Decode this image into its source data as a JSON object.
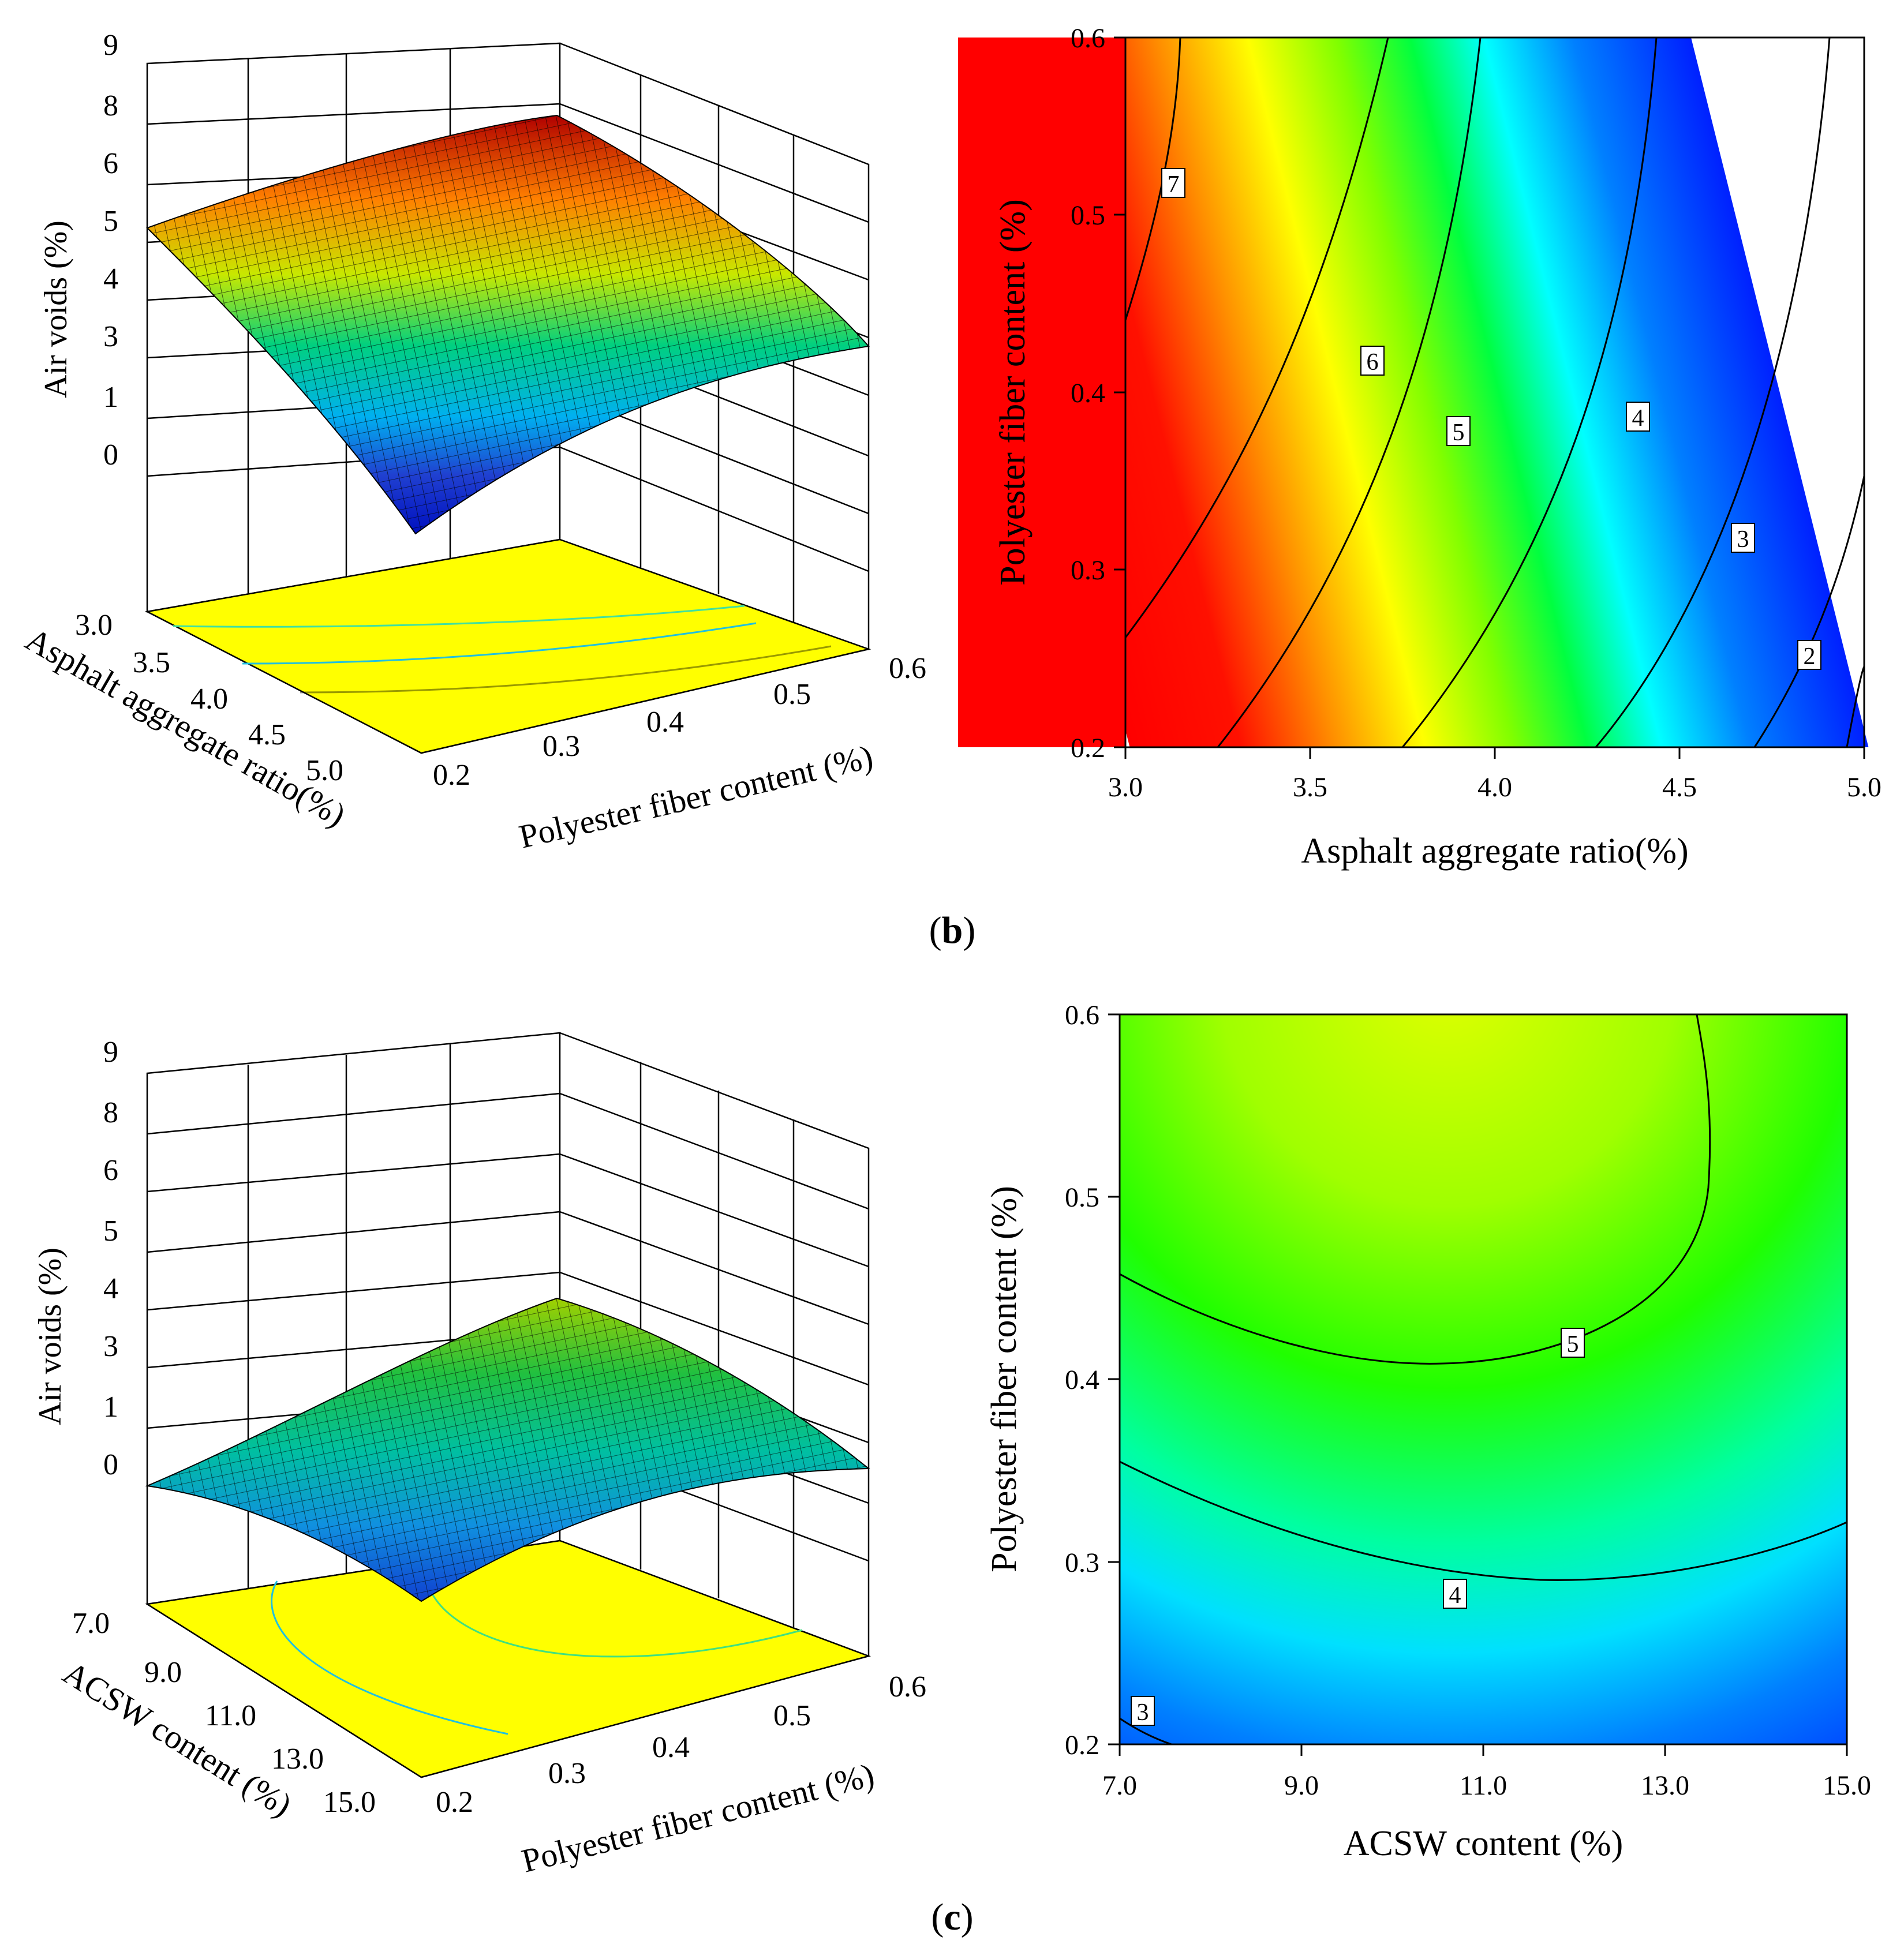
{
  "chart_data": [
    {
      "id": "b-surface",
      "type": "surface3d",
      "zlabel": "Air voids (%)",
      "xlabel": "Asphalt aggregate ratio(%)",
      "ylabel": "Polyester fiber  content (%)",
      "z_ticks": [
        "0",
        "1",
        "3",
        "4",
        "5",
        "6",
        "8",
        "9"
      ],
      "x_ticks": [
        "3.0",
        "3.5",
        "4.0",
        "4.5",
        "5.0"
      ],
      "y_ticks": [
        "0.2",
        "0.3",
        "0.4",
        "0.5",
        "0.6"
      ],
      "x_range": [
        3.0,
        5.0
      ],
      "y_range": [
        0.2,
        0.6
      ],
      "z_range": [
        0,
        9
      ],
      "corner_values": {
        "x3.0_y0.2": 5.1,
        "x3.0_y0.6": 7.5,
        "x5.0_y0.2": 1.2,
        "x5.0_y0.6": 3.6
      },
      "palette": "jet",
      "floor_color": "#ffff00"
    },
    {
      "id": "b-contour",
      "type": "contour",
      "xlabel": "Asphalt aggregate ratio(%)",
      "ylabel": "Polyester fiber  content (%)",
      "x_ticks": [
        "3.0",
        "3.5",
        "4.0",
        "4.5",
        "5.0"
      ],
      "y_ticks": [
        "0.2",
        "0.3",
        "0.4",
        "0.5",
        "0.6"
      ],
      "x_range": [
        3.0,
        5.0
      ],
      "y_range": [
        0.2,
        0.6
      ],
      "contour_levels": [
        "7",
        "6",
        "5",
        "4",
        "3",
        "2"
      ],
      "palette": "jet"
    },
    {
      "id": "c-surface",
      "type": "surface3d",
      "zlabel": "Air voids (%)",
      "xlabel": "ACSW  content (%)",
      "ylabel": "Polyester fiber  content (%)",
      "z_ticks": [
        "0",
        "1",
        "3",
        "4",
        "5",
        "6",
        "8",
        "9"
      ],
      "x_ticks": [
        "7.0",
        "9.0",
        "11.0",
        "13.0",
        "15.0"
      ],
      "y_ticks": [
        "0.2",
        "0.3",
        "0.4",
        "0.5",
        "0.6"
      ],
      "x_range": [
        7.0,
        15.0
      ],
      "y_range": [
        0.2,
        0.6
      ],
      "z_range": [
        0,
        9
      ],
      "corner_values": {
        "x7_y0.2": 2.8,
        "x7_y0.6": 4.6,
        "x15_y0.2": 3.5,
        "x15_y0.6": 4.6
      },
      "palette": "jet",
      "floor_color": "#ffff00"
    },
    {
      "id": "c-contour",
      "type": "contour",
      "xlabel": "ACSW  content (%)",
      "ylabel": "Polyester fiber  content (%)",
      "x_ticks": [
        "7.0",
        "9.0",
        "11.0",
        "13.0",
        "15.0"
      ],
      "y_ticks": [
        "0.2",
        "0.3",
        "0.4",
        "0.5",
        "0.6"
      ],
      "x_range": [
        7.0,
        15.0
      ],
      "y_range": [
        0.2,
        0.6
      ],
      "contour_levels": [
        "5",
        "4",
        "3"
      ],
      "palette": "jet"
    }
  ],
  "captions": {
    "b": "b",
    "c": "c"
  }
}
